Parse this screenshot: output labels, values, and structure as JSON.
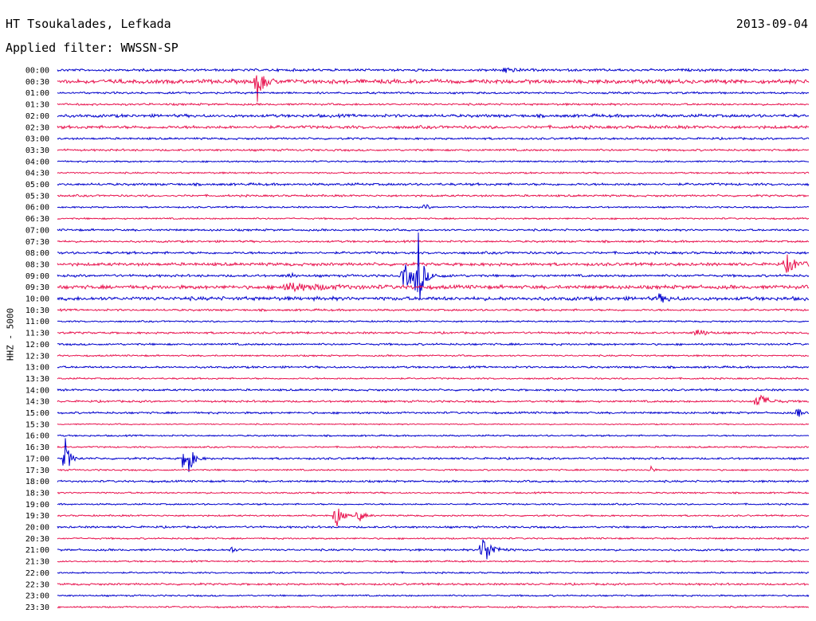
{
  "header": {
    "station": "HT Tsoukalades, Lefkada",
    "date": "2013-09-04",
    "filter": "Applied filter: WWSSN-SP"
  },
  "side_label": "HHZ - 5000",
  "chart_data": {
    "type": "line",
    "title": "HT Tsoukalades, Lefkada",
    "subtitle": "Applied filter: WWSSN-SP",
    "ylabel": "HHZ - 5000",
    "xlabel": "",
    "colors": [
      "#0000cc",
      "#e8134f"
    ],
    "rows": [
      "00:00",
      "00:30",
      "01:00",
      "01:30",
      "02:00",
      "02:30",
      "03:00",
      "03:30",
      "04:00",
      "04:30",
      "05:00",
      "05:30",
      "06:00",
      "06:30",
      "07:00",
      "07:30",
      "08:00",
      "08:30",
      "09:00",
      "09:30",
      "10:00",
      "10:30",
      "11:00",
      "11:30",
      "12:00",
      "12:30",
      "13:00",
      "13:30",
      "14:00",
      "14:30",
      "15:00",
      "15:30",
      "16:00",
      "16:30",
      "17:00",
      "17:30",
      "18:00",
      "18:30",
      "19:00",
      "19:30",
      "20:00",
      "20:30",
      "21:00",
      "21:30",
      "22:00",
      "22:30",
      "23:00",
      "23:30"
    ],
    "noise": [
      1.2,
      2.0,
      1.0,
      1.0,
      1.5,
      1.5,
      1.0,
      1.0,
      0.8,
      0.8,
      1.2,
      1.0,
      0.8,
      0.8,
      1.0,
      1.0,
      1.2,
      1.5,
      1.2,
      1.8,
      1.8,
      1.0,
      0.8,
      1.0,
      1.0,
      0.8,
      1.0,
      0.8,
      1.0,
      1.0,
      1.0,
      0.6,
      0.8,
      0.8,
      1.0,
      0.8,
      1.0,
      0.8,
      0.8,
      0.8,
      1.0,
      0.8,
      1.0,
      0.8,
      0.8,
      1.0,
      0.8,
      0.8
    ],
    "events": [
      {
        "row": 1,
        "t": 0.265,
        "amp": 28,
        "w": 0.007
      },
      {
        "row": 0,
        "t": 0.595,
        "amp": 5,
        "w": 0.01
      },
      {
        "row": 12,
        "t": 0.49,
        "amp": 6,
        "w": 0.003
      },
      {
        "row": 17,
        "t": 0.97,
        "amp": 12,
        "w": 0.012
      },
      {
        "row": 18,
        "t": 0.46,
        "amp": 16,
        "w": 0.018
      },
      {
        "row": 18,
        "t": 0.48,
        "amp": 60,
        "w": 0.004
      },
      {
        "row": 18,
        "t": 0.31,
        "amp": 6,
        "w": 0.003
      },
      {
        "row": 19,
        "t": 0.3,
        "amp": 5,
        "w": 0.05
      },
      {
        "row": 20,
        "t": 0.8,
        "amp": 5,
        "w": 0.01
      },
      {
        "row": 23,
        "t": 0.85,
        "amp": 6,
        "w": 0.01
      },
      {
        "row": 29,
        "t": 0.93,
        "amp": 12,
        "w": 0.012
      },
      {
        "row": 30,
        "t": 0.985,
        "amp": 8,
        "w": 0.004
      },
      {
        "row": 34,
        "t": 0.01,
        "amp": 28,
        "w": 0.005
      },
      {
        "row": 34,
        "t": 0.17,
        "amp": 40,
        "w": 0.006
      },
      {
        "row": 35,
        "t": 0.79,
        "amp": 6,
        "w": 0.002
      },
      {
        "row": 39,
        "t": 0.37,
        "amp": 20,
        "w": 0.006
      },
      {
        "row": 39,
        "t": 0.4,
        "amp": 10,
        "w": 0.006
      },
      {
        "row": 42,
        "t": 0.23,
        "amp": 6,
        "w": 0.004
      },
      {
        "row": 42,
        "t": 0.565,
        "amp": 24,
        "w": 0.01
      }
    ]
  }
}
